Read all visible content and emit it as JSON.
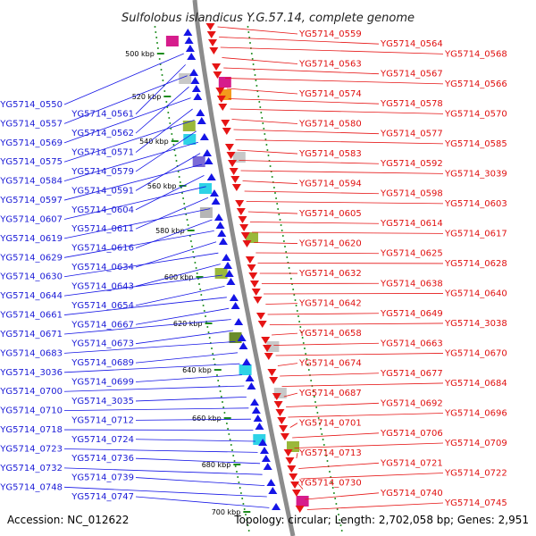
{
  "title": "Sulfolobus islandicus Y.G.57.14, complete genome",
  "footer": {
    "accession": "Accession: NC_012622",
    "summary": "Topology: circular; Length: 2,702,058 bp; Genes: 2,951"
  },
  "colors": {
    "forward_genes": "#1515e6",
    "reverse_genes": "#e61515",
    "backbone": "#8c8c8c",
    "gc_dots": "#1e8c1e"
  },
  "kbp_ticks": [
    "500 kbp",
    "520 kbp",
    "540 kbp",
    "560 kbp",
    "580 kbp",
    "600 kbp",
    "620 kbp",
    "640 kbp",
    "660 kbp",
    "680 kbp",
    "700 kbp"
  ],
  "left_labels": [
    "YG5714_0550",
    "YG5714_0561",
    "YG5714_0557",
    "YG5714_0562",
    "YG5714_0569",
    "YG5714_0571",
    "YG5714_0575",
    "YG5714_0579",
    "YG5714_0584",
    "YG5714_0591",
    "YG5714_0597",
    "YG5714_0604",
    "YG5714_0607",
    "YG5714_0611",
    "YG5714_0619",
    "YG5714_0616",
    "YG5714_0629",
    "YG5714_0634",
    "YG5714_0630",
    "YG5714_0643",
    "YG5714_0644",
    "YG5714_0654",
    "YG5714_0661",
    "YG5714_0667",
    "YG5714_0671",
    "YG5714_0673",
    "YG5714_0683",
    "YG5714_0689",
    "YG5714_3036",
    "YG5714_0699",
    "YG5714_0700",
    "YG5714_3035",
    "YG5714_0710",
    "YG5714_0712",
    "YG5714_0718",
    "YG5714_0724",
    "YG5714_0723",
    "YG5714_0736",
    "YG5714_0732",
    "YG5714_0739",
    "YG5714_0748",
    "YG5714_0747"
  ],
  "right_labels": [
    "YG5714_0559",
    "YG5714_0564",
    "YG5714_0568",
    "YG5714_0563",
    "YG5714_0567",
    "YG5714_0566",
    "YG5714_0574",
    "YG5714_0578",
    "YG5714_0570",
    "YG5714_0580",
    "YG5714_0577",
    "YG5714_0585",
    "YG5714_0583",
    "YG5714_0592",
    "YG5714_3039",
    "YG5714_0594",
    "YG5714_0598",
    "YG5714_0603",
    "YG5714_0605",
    "YG5714_0614",
    "YG5714_0617",
    "YG5714_0620",
    "YG5714_0625",
    "YG5714_0628",
    "YG5714_0632",
    "YG5714_0638",
    "YG5714_0640",
    "YG5714_0642",
    "YG5714_0649",
    "YG5714_3038",
    "YG5714_0658",
    "YG5714_0663",
    "YG5714_0670",
    "YG5714_0674",
    "YG5714_0677",
    "YG5714_0684",
    "YG5714_0687",
    "YG5714_0692",
    "YG5714_0696",
    "YG5714_0701",
    "YG5714_0706",
    "YG5714_0709",
    "YG5714_0713",
    "YG5714_0721",
    "YG5714_0722",
    "YG5714_0730",
    "YG5714_0740",
    "YG5714_0745"
  ]
}
